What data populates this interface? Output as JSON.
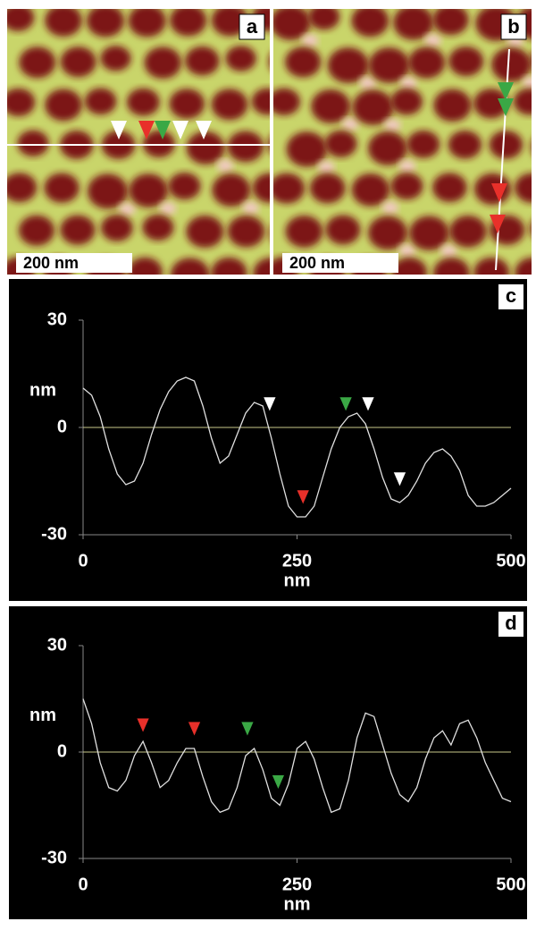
{
  "panels": [
    {
      "label": "a",
      "scale_bar": "200 nm"
    },
    {
      "label": "b",
      "scale_bar": "200 nm"
    }
  ],
  "chart_data": [
    {
      "type": "line",
      "panel": "c",
      "xlabel": "nm",
      "ylabel": "nm",
      "color": "#e0e0e0",
      "zero_line_color": "#c8c88a",
      "x": [
        0,
        10,
        20,
        30,
        40,
        50,
        60,
        70,
        80,
        90,
        100,
        110,
        120,
        130,
        140,
        150,
        160,
        170,
        180,
        190,
        200,
        210,
        220,
        230,
        240,
        250,
        260,
        270,
        280,
        290,
        300,
        310,
        320,
        330,
        340,
        350,
        360,
        370,
        380,
        390,
        400,
        410,
        420,
        430,
        440,
        450,
        460,
        470,
        480,
        490,
        500
      ],
      "values": [
        11,
        9,
        3,
        -6,
        -13,
        -16,
        -15,
        -10,
        -2,
        5,
        10,
        13,
        14,
        13,
        6,
        -3,
        -10,
        -8,
        -2,
        4,
        7,
        6,
        -3,
        -13,
        -22,
        -25,
        -25,
        -22,
        -14,
        -6,
        0,
        3,
        4,
        1,
        -6,
        -14,
        -20,
        -21,
        -19,
        -15,
        -10,
        -7,
        -6,
        -8,
        -12,
        -19,
        -22,
        -22,
        -21,
        -19,
        -17
      ],
      "markers": [
        {
          "x": 218,
          "y": 4,
          "color": "#ffffff"
        },
        {
          "x": 257,
          "y": -22,
          "color": "#e8302a"
        },
        {
          "x": 307,
          "y": 4,
          "color": "#3aa845"
        },
        {
          "x": 333,
          "y": 4,
          "color": "#ffffff"
        },
        {
          "x": 370,
          "y": -17,
          "color": "#ffffff"
        }
      ],
      "xlim": [
        0,
        500
      ],
      "ylim": [
        -30,
        30
      ],
      "xticks": [
        0,
        250,
        500
      ],
      "yticks": [
        -30,
        0,
        30
      ]
    },
    {
      "type": "line",
      "panel": "d",
      "xlabel": "nm",
      "ylabel": "nm",
      "color": "#e0e0e0",
      "zero_line_color": "#c8c88a",
      "x": [
        0,
        10,
        20,
        30,
        40,
        50,
        60,
        70,
        80,
        90,
        100,
        110,
        120,
        130,
        140,
        150,
        160,
        170,
        180,
        190,
        200,
        210,
        220,
        230,
        240,
        250,
        260,
        270,
        280,
        290,
        300,
        310,
        320,
        330,
        340,
        350,
        360,
        370,
        380,
        390,
        400,
        410,
        420,
        430,
        440,
        450,
        460,
        470,
        480,
        490,
        500
      ],
      "values": [
        15,
        8,
        -3,
        -10,
        -11,
        -8,
        -1,
        3,
        -3,
        -10,
        -8,
        -3,
        1,
        1,
        -7,
        -14,
        -17,
        -16,
        -10,
        -1,
        1,
        -5,
        -13,
        -15,
        -9,
        1,
        3,
        -2,
        -10,
        -17,
        -16,
        -8,
        4,
        11,
        10,
        2,
        -6,
        -12,
        -14,
        -10,
        -2,
        4,
        6,
        2,
        8,
        9,
        4,
        -3,
        -8,
        -13,
        -14
      ],
      "markers": [
        {
          "x": 70,
          "y": 5,
          "color": "#e8302a"
        },
        {
          "x": 130,
          "y": 4,
          "color": "#e8302a"
        },
        {
          "x": 192,
          "y": 4,
          "color": "#3aa845"
        },
        {
          "x": 228,
          "y": -11,
          "color": "#3aa845"
        }
      ],
      "xlim": [
        0,
        500
      ],
      "ylim": [
        -30,
        30
      ],
      "xticks": [
        0,
        250,
        500
      ],
      "yticks": [
        -30,
        0,
        30
      ]
    }
  ]
}
